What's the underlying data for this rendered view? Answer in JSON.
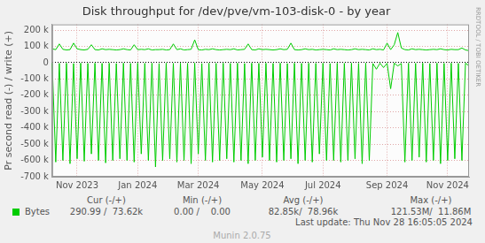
{
  "chart_data": {
    "type": "line",
    "title": "Disk throughput for /dev/pve/vm-103-disk-0 - by year",
    "y_label": "Pr second read (-) / write (+)",
    "categories": [
      null,
      null,
      null,
      null,
      null,
      null,
      null,
      "Nov 2023",
      null,
      null,
      null,
      null,
      null,
      null,
      null,
      null,
      null,
      null,
      null,
      null,
      null,
      null,
      null,
      null,
      "Jan 2024",
      null,
      null,
      null,
      null,
      null,
      null,
      null,
      null,
      null,
      null,
      null,
      null,
      null,
      null,
      null,
      null,
      "Mar 2024",
      null,
      null,
      null,
      null,
      null,
      null,
      null,
      null,
      null,
      null,
      null,
      null,
      null,
      null,
      null,
      null,
      null,
      "May 2024",
      null,
      null,
      null,
      null,
      null,
      null,
      null,
      null,
      null,
      null,
      null,
      null,
      null,
      null,
      null,
      null,
      "Jul 2024",
      null,
      null,
      null,
      null,
      null,
      null,
      null,
      null,
      null,
      null,
      null,
      null,
      null,
      null,
      null,
      null,
      null,
      "Sep 2024",
      null,
      null,
      null,
      null,
      null,
      null,
      null,
      null,
      null,
      null,
      null,
      null,
      null,
      null,
      null,
      null,
      "Nov 2024",
      null,
      null,
      null,
      null,
      null,
      null
    ],
    "series": [
      {
        "color": "#00cc00",
        "values": [
          -3000,
          -610000,
          -4000,
          -600000,
          -3000,
          -620000,
          -5000,
          -590000,
          -3000,
          -605000,
          -4000,
          -560000,
          -3000,
          -600000,
          -4000,
          -615000,
          -3000,
          -600000,
          -5000,
          -590000,
          -3000,
          -600000,
          -4000,
          -610000,
          -3000,
          -560000,
          -4000,
          -600000,
          -3000,
          -640000,
          -5000,
          -600000,
          -3000,
          -590000,
          -4000,
          -610000,
          -3000,
          -600000,
          -4000,
          -620000,
          -3000,
          -560000,
          -5000,
          -600000,
          -3000,
          -610000,
          -4000,
          -600000,
          -3000,
          -590000,
          -4000,
          -610000,
          -3000,
          -600000,
          -5000,
          -620000,
          -3000,
          -600000,
          -4000,
          -580000,
          -3000,
          -600000,
          -4000,
          -610000,
          -3000,
          -600000,
          -5000,
          -590000,
          -3000,
          -620000,
          -4000,
          -600000,
          -3000,
          -610000,
          -4000,
          -560000,
          -3000,
          -600000,
          -5000,
          -600000,
          -3000,
          -610000,
          -4000,
          -600000,
          -3000,
          -590000,
          -4000,
          -620000,
          -3000,
          -600000,
          -5000,
          -40000,
          -3000,
          -30000,
          -4000,
          -160000,
          -3000,
          -20000,
          -5000,
          -610000,
          -3000,
          -600000,
          -4000,
          -580000,
          -3000,
          -610000,
          -5000,
          -600000,
          -3000,
          -620000,
          -4000,
          -600000,
          -3000,
          -590000,
          -4000,
          -600000,
          -3000,
          -20000
        ]
      },
      {
        "color": "#00cc00",
        "values": [
          85000,
          80000,
          115000,
          82000,
          78000,
          80000,
          120000,
          85000,
          80000,
          78000,
          82000,
          110000,
          80000,
          78000,
          85000,
          80000,
          82000,
          80000,
          78000,
          80000,
          85000,
          80000,
          78000,
          110000,
          80000,
          82000,
          80000,
          85000,
          78000,
          80000,
          80000,
          82000,
          78000,
          80000,
          115000,
          80000,
          85000,
          78000,
          80000,
          82000,
          140000,
          80000,
          78000,
          82000,
          80000,
          85000,
          80000,
          78000,
          80000,
          82000,
          80000,
          85000,
          78000,
          80000,
          82000,
          115000,
          80000,
          78000,
          85000,
          80000,
          82000,
          80000,
          78000,
          80000,
          85000,
          80000,
          82000,
          120000,
          80000,
          78000,
          80000,
          85000,
          80000,
          82000,
          78000,
          80000,
          82000,
          80000,
          78000,
          85000,
          80000,
          82000,
          80000,
          78000,
          80000,
          85000,
          80000,
          82000,
          80000,
          78000,
          85000,
          80000,
          82000,
          78000,
          120000,
          80000,
          110000,
          185000,
          90000,
          80000,
          78000,
          85000,
          80000,
          82000,
          80000,
          78000,
          80000,
          82000,
          80000,
          85000,
          80000,
          78000,
          82000,
          80000,
          80000,
          90000,
          78000,
          74000
        ]
      }
    ],
    "ylim": [
      -700000,
      235000
    ],
    "yticks": [
      {
        "value": -700000,
        "label": "-700 k"
      },
      {
        "value": -600000,
        "label": "-600 k"
      },
      {
        "value": -500000,
        "label": "-500 k"
      },
      {
        "value": -400000,
        "label": "-400 k"
      },
      {
        "value": -300000,
        "label": "-300 k"
      },
      {
        "value": -200000,
        "label": "-200 k"
      },
      {
        "value": -100000,
        "label": "-100 k"
      },
      0,
      {
        "value": 100000,
        "label": "100 k"
      },
      {
        "value": 200000,
        "label": "200 k"
      }
    ],
    "grid": true,
    "stats_table": {
      "headers": [
        "Cur (-/+)",
        "Min (-/+)",
        "Avg (-/+)",
        "Max (-/+)"
      ],
      "rows": [
        {
          "name": "Bytes",
          "color": "#00cc00",
          "values": [
            "290.99 /  73.62k",
            "0.00 /    0.00",
            "82.85k/  78.96k",
            "121.53M/  11.86M"
          ]
        }
      ]
    },
    "last_update": "Last update: Thu Nov 28 16:05:05 2024",
    "side_text": "RRDTOOL / TOBI OETIKER",
    "footer": "Munin 2.0.75"
  }
}
